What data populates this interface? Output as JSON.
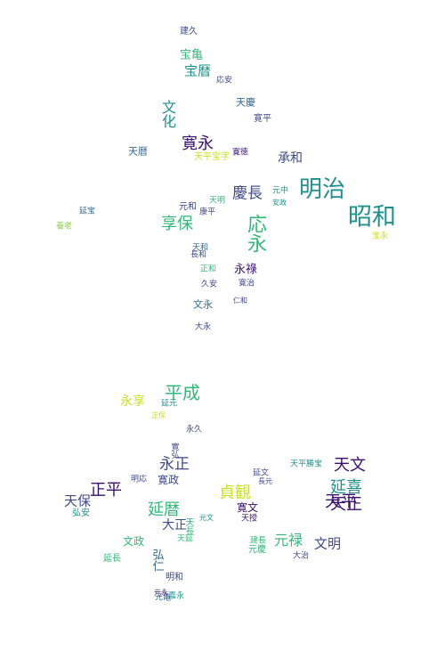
{
  "palette": {
    "dark": "#3b0f70",
    "indigo": "#3e4a89",
    "blue": "#31688e",
    "teal": "#21908c",
    "green": "#35b779",
    "lime": "#90d743",
    "yellow": "#c8e020"
  },
  "words": [
    {
      "text": "建久",
      "c": "indigo"
    },
    {
      "text": "宝亀",
      "c": "green"
    },
    {
      "text": "宝暦",
      "c": "teal"
    },
    {
      "text": "文化",
      "c": "teal"
    },
    {
      "text": "応安",
      "c": "indigo"
    },
    {
      "text": "天慶",
      "c": "blue"
    },
    {
      "text": "寛平",
      "c": "indigo"
    },
    {
      "text": "寛永",
      "c": "dark"
    },
    {
      "text": "天暦",
      "c": "blue"
    },
    {
      "text": "承和",
      "c": "indigo"
    },
    {
      "text": "天平宝字",
      "c": "yellow"
    },
    {
      "text": "明治",
      "c": "teal"
    },
    {
      "text": "慶長",
      "c": "indigo"
    },
    {
      "text": "昭和",
      "c": "teal"
    },
    {
      "text": "享保",
      "c": "green"
    },
    {
      "text": "元和",
      "c": "indigo"
    },
    {
      "text": "応永",
      "c": "green"
    },
    {
      "text": "天明",
      "c": "green"
    },
    {
      "text": "康平",
      "c": "indigo"
    },
    {
      "text": "元中",
      "c": "teal"
    },
    {
      "text": "永祿",
      "c": "dark"
    },
    {
      "text": "文永",
      "c": "blue"
    },
    {
      "text": "大永",
      "c": "indigo"
    },
    {
      "text": "延宝",
      "c": "blue"
    },
    {
      "text": "養老",
      "c": "lime"
    },
    {
      "text": "安政",
      "c": "teal"
    },
    {
      "text": "宝永",
      "c": "yellow"
    },
    {
      "text": "天平",
      "c": "dark"
    },
    {
      "text": "平成",
      "c": "green"
    },
    {
      "text": "永享",
      "c": "yellow"
    },
    {
      "text": "天文",
      "c": "dark"
    },
    {
      "text": "永正",
      "c": "indigo"
    },
    {
      "text": "正平",
      "c": "dark"
    },
    {
      "text": "寛政",
      "c": "indigo"
    },
    {
      "text": "貞観",
      "c": "yellow"
    },
    {
      "text": "延喜",
      "c": "teal"
    },
    {
      "text": "天正",
      "c": "dark"
    },
    {
      "text": "天保",
      "c": "indigo"
    },
    {
      "text": "延暦",
      "c": "green"
    },
    {
      "text": "大正",
      "c": "indigo"
    },
    {
      "text": "天平勝宝",
      "c": "teal"
    },
    {
      "text": "寛文",
      "c": "dark"
    },
    {
      "text": "元禄",
      "c": "green"
    },
    {
      "text": "文明",
      "c": "indigo"
    },
    {
      "text": "文政",
      "c": "green"
    },
    {
      "text": "弘仁",
      "c": "blue"
    },
    {
      "text": "明和",
      "c": "indigo"
    },
    {
      "text": "延長",
      "c": "green"
    },
    {
      "text": "弘安",
      "c": "teal"
    },
    {
      "text": "明応",
      "c": "indigo"
    },
    {
      "text": "元慶",
      "c": "green"
    },
    {
      "text": "建長",
      "c": "green"
    },
    {
      "text": "天授",
      "c": "dark"
    },
    {
      "text": "大治",
      "c": "indigo"
    },
    {
      "text": "寛弘",
      "c": "indigo"
    },
    {
      "text": "天延",
      "c": "green"
    },
    {
      "text": "元文",
      "c": "teal"
    },
    {
      "text": "天長",
      "c": "green"
    },
    {
      "text": "延文",
      "c": "indigo"
    },
    {
      "text": "寛治",
      "c": "indigo"
    },
    {
      "text": "永久",
      "c": "indigo"
    },
    {
      "text": "寛徳",
      "c": "dark"
    },
    {
      "text": "長和",
      "c": "indigo"
    },
    {
      "text": "正和",
      "c": "green"
    },
    {
      "text": "仁和",
      "c": "indigo"
    },
    {
      "text": "久安",
      "c": "indigo"
    },
    {
      "text": "天和",
      "c": "blue"
    },
    {
      "text": "元永",
      "c": "dark"
    },
    {
      "text": "元亀",
      "c": "blue"
    },
    {
      "text": "嘉永",
      "c": "teal"
    },
    {
      "text": "延元",
      "c": "teal"
    },
    {
      "text": "正保",
      "c": "yellow"
    },
    {
      "text": "長元",
      "c": "indigo"
    }
  ]
}
